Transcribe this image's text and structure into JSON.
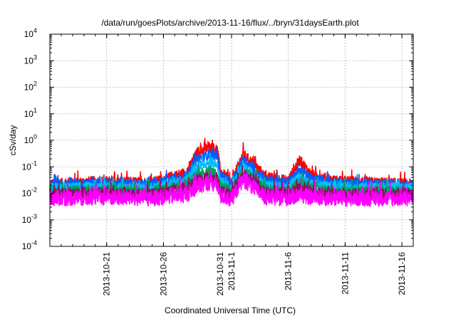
{
  "chart_data": {
    "type": "line",
    "title": "/data/run/goesPlots/archive/2013-11-16/flux/../bryn/31daysEarth.plot",
    "xlabel": "Coordinated Universal Time (UTC)",
    "ylabel": "cSv/day",
    "yscale": "log",
    "ylim": [
      0.0001,
      10000
    ],
    "xlim": [
      "2013-10-16",
      "2013-11-17"
    ],
    "y_ticks": [
      {
        "base": "10",
        "exp": "-4"
      },
      {
        "base": "10",
        "exp": "-3"
      },
      {
        "base": "10",
        "exp": "-2"
      },
      {
        "base": "10",
        "exp": "-1"
      },
      {
        "base": "10",
        "exp": "0"
      },
      {
        "base": "10",
        "exp": "1"
      },
      {
        "base": "10",
        "exp": "2"
      },
      {
        "base": "10",
        "exp": "3"
      },
      {
        "base": "10",
        "exp": "4"
      }
    ],
    "x_ticks": [
      "2013-10-21",
      "2013-10-26",
      "2013-10-31",
      "2013-11-1",
      "2013-11-6",
      "2013-11-11",
      "2013-11-16"
    ],
    "grid": true,
    "series": [
      {
        "color": "#ff0000",
        "baseline": 0.022,
        "spread": 1.6,
        "points": [
          [
            "2013-10-16",
            0.022
          ],
          [
            "2013-10-20",
            0.028
          ],
          [
            "2013-10-25",
            0.025
          ],
          [
            "2013-10-28",
            0.06
          ],
          [
            "2013-10-29",
            0.35
          ],
          [
            "2013-10-30",
            0.55
          ],
          [
            "2013-10-30T18",
            0.45
          ],
          [
            "2013-10-31",
            0.07
          ],
          [
            "2013-11-1",
            0.025
          ],
          [
            "2013-11-2",
            0.3
          ],
          [
            "2013-11-3",
            0.12
          ],
          [
            "2013-11-4",
            0.04
          ],
          [
            "2013-11-6",
            0.03
          ],
          [
            "2013-11-7",
            0.18
          ],
          [
            "2013-11-8",
            0.05
          ],
          [
            "2013-11-10",
            0.03
          ],
          [
            "2013-11-14",
            0.025
          ],
          [
            "2013-11-17",
            0.022
          ]
        ]
      },
      {
        "color": "#0060ff",
        "baseline": 0.02,
        "spread": 1.55,
        "points": [
          [
            "2013-10-16",
            0.02
          ],
          [
            "2013-10-20",
            0.024
          ],
          [
            "2013-10-25",
            0.022
          ],
          [
            "2013-10-28",
            0.045
          ],
          [
            "2013-10-29",
            0.2
          ],
          [
            "2013-10-30",
            0.3
          ],
          [
            "2013-10-30T18",
            0.25
          ],
          [
            "2013-10-31",
            0.05
          ],
          [
            "2013-11-1",
            0.022
          ],
          [
            "2013-11-2",
            0.18
          ],
          [
            "2013-11-3",
            0.08
          ],
          [
            "2013-11-4",
            0.03
          ],
          [
            "2013-11-6",
            0.025
          ],
          [
            "2013-11-7",
            0.08
          ],
          [
            "2013-11-8",
            0.035
          ],
          [
            "2013-11-10",
            0.025
          ],
          [
            "2013-11-14",
            0.022
          ],
          [
            "2013-11-17",
            0.02
          ]
        ]
      },
      {
        "color": "#00c0ff",
        "baseline": 0.016,
        "spread": 1.5,
        "points": [
          [
            "2013-10-16",
            0.016
          ],
          [
            "2013-10-20",
            0.018
          ],
          [
            "2013-10-25",
            0.017
          ],
          [
            "2013-10-28",
            0.03
          ],
          [
            "2013-10-29",
            0.1
          ],
          [
            "2013-10-30",
            0.15
          ],
          [
            "2013-10-30T18",
            0.12
          ],
          [
            "2013-10-31",
            0.03
          ],
          [
            "2013-11-1",
            0.016
          ],
          [
            "2013-11-2",
            0.1
          ],
          [
            "2013-11-3",
            0.05
          ],
          [
            "2013-11-4",
            0.02
          ],
          [
            "2013-11-6",
            0.018
          ],
          [
            "2013-11-7",
            0.04
          ],
          [
            "2013-11-8",
            0.022
          ],
          [
            "2013-11-10",
            0.018
          ],
          [
            "2013-11-14",
            0.017
          ],
          [
            "2013-11-17",
            0.016
          ]
        ]
      },
      {
        "color": "#00a060",
        "baseline": 0.012,
        "spread": 1.6,
        "points": [
          [
            "2013-10-16",
            0.012
          ],
          [
            "2013-10-20",
            0.013
          ],
          [
            "2013-10-25",
            0.012
          ],
          [
            "2013-10-28",
            0.02
          ],
          [
            "2013-10-29",
            0.05
          ],
          [
            "2013-10-30",
            0.07
          ],
          [
            "2013-10-30T18",
            0.06
          ],
          [
            "2013-10-31",
            0.02
          ],
          [
            "2013-11-1",
            0.011
          ],
          [
            "2013-11-2",
            0.07
          ],
          [
            "2013-11-3",
            0.035
          ],
          [
            "2013-11-4",
            0.014
          ],
          [
            "2013-11-6",
            0.012
          ],
          [
            "2013-11-7",
            0.025
          ],
          [
            "2013-11-8",
            0.015
          ],
          [
            "2013-11-10",
            0.012
          ],
          [
            "2013-11-14",
            0.012
          ],
          [
            "2013-11-17",
            0.012
          ]
        ]
      },
      {
        "color": "#8a1060",
        "baseline": 0.009,
        "spread": 1.7,
        "points": [
          [
            "2013-10-16",
            0.009
          ],
          [
            "2013-10-20",
            0.01
          ],
          [
            "2013-10-25",
            0.009
          ],
          [
            "2013-10-28",
            0.014
          ],
          [
            "2013-10-29",
            0.03
          ],
          [
            "2013-10-30",
            0.04
          ],
          [
            "2013-10-30T18",
            0.035
          ],
          [
            "2013-10-31",
            0.012
          ],
          [
            "2013-11-1",
            0.008
          ],
          [
            "2013-11-2",
            0.05
          ],
          [
            "2013-11-3",
            0.025
          ],
          [
            "2013-11-4",
            0.01
          ],
          [
            "2013-11-6",
            0.009
          ],
          [
            "2013-11-7",
            0.015
          ],
          [
            "2013-11-8",
            0.01
          ],
          [
            "2013-11-10",
            0.009
          ],
          [
            "2013-11-14",
            0.009
          ],
          [
            "2013-11-17",
            0.009
          ]
        ]
      },
      {
        "color": "#ff00ff",
        "baseline": 0.0065,
        "spread": 2.0,
        "points": [
          [
            "2013-10-16",
            0.0065
          ],
          [
            "2013-10-20",
            0.007
          ],
          [
            "2013-10-25",
            0.0065
          ],
          [
            "2013-10-28",
            0.009
          ],
          [
            "2013-10-29",
            0.018
          ],
          [
            "2013-10-30",
            0.025
          ],
          [
            "2013-10-30T18",
            0.02
          ],
          [
            "2013-10-31",
            0.008
          ],
          [
            "2013-11-1",
            0.006
          ],
          [
            "2013-11-2",
            0.035
          ],
          [
            "2013-11-3",
            0.015
          ],
          [
            "2013-11-4",
            0.007
          ],
          [
            "2013-11-6",
            0.0065
          ],
          [
            "2013-11-7",
            0.009
          ],
          [
            "2013-11-8",
            0.007
          ],
          [
            "2013-11-10",
            0.0065
          ],
          [
            "2013-11-14",
            0.0065
          ],
          [
            "2013-11-17",
            0.0065
          ]
        ]
      }
    ]
  }
}
